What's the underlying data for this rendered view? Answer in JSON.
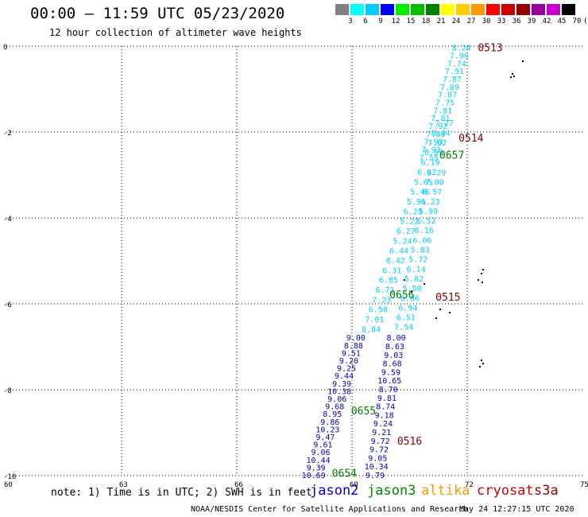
{
  "title": "00:00 – 11:59 UTC 05/23/2020",
  "subtitle": "12 hour collection of altimeter wave heights",
  "colorbar": {
    "labels": [
      "3",
      "6",
      "9",
      "12",
      "15",
      "18",
      "21",
      "24",
      "27",
      "30",
      "33",
      "36",
      "39",
      "42",
      "45",
      "70",
      "(ft)"
    ],
    "colors": [
      "#808080",
      "#00ffff",
      "#00ccff",
      "#0000ff",
      "#00ee00",
      "#00c000",
      "#008000",
      "#ffff00",
      "#ffcc00",
      "#ff9900",
      "#ff0000",
      "#cc0000",
      "#990000",
      "#990099",
      "#cc00cc",
      "#000000"
    ]
  },
  "axes": {
    "x_ticks": [
      "60",
      "63",
      "66",
      "69",
      "72",
      "75"
    ],
    "y_ticks": [
      "0",
      "-2",
      "-4",
      "-6",
      "-8",
      "-10"
    ],
    "lon_range": [
      60,
      75
    ],
    "lat_range": [
      -10,
      0
    ]
  },
  "tracks": [
    {
      "satellite": "jason2",
      "color": "#00ccff",
      "start": [
        71.85,
        -0.05
      ],
      "end": [
        71.0,
        -2.6
      ],
      "values": [
        "8.24",
        "7.96",
        "7.74",
        "7.91",
        "7.87",
        "7.89",
        "7.87",
        "7.75",
        "7.81",
        "7.81",
        "7.92",
        "7.80",
        "7.93",
        "7.93",
        "7.55"
      ]
    },
    {
      "satellite": "jason2",
      "color": "#00ccff",
      "start": [
        71.2,
        -2.95
      ],
      "end": [
        70.35,
        -6.55
      ],
      "values": [
        "8.29",
        "7.00",
        "6.57",
        "6.23",
        "5.99",
        "6.52",
        "6.16",
        "6.06",
        "5.83",
        "5.72",
        "6.14",
        "5.82",
        "5.50",
        "6.06",
        "6.94",
        "6.51",
        "7.54"
      ]
    },
    {
      "satellite": "jason2",
      "color": "#0000c8",
      "start": [
        70.15,
        -6.8
      ],
      "end": [
        69.6,
        -10.0
      ],
      "values": [
        "8.00",
        "8.63",
        "9.03",
        "8.68",
        "9.59",
        "10.65",
        "8.70",
        "9.81",
        "8.74",
        "9.18",
        "9.24",
        "9.21",
        "9.72",
        "9.72",
        "9.05",
        "10.34",
        "9.79"
      ]
    },
    {
      "satellite": "jason2",
      "color": "#00ccff",
      "start": [
        71.4,
        -1.8
      ],
      "end": [
        69.5,
        -6.6
      ],
      "values": [
        "7.27",
        "8.44",
        "7.02",
        "6.99",
        "6.19",
        "6.92",
        "5.65",
        "5.48",
        "5.91",
        "6.25",
        "5.22",
        "6.27",
        "5.24",
        "6.44",
        "6.42",
        "6.31",
        "6.85",
        "6.71",
        "7.23",
        "6.58",
        "7.01",
        "8.84"
      ]
    },
    {
      "satellite": "jason2",
      "color": "#0000c8",
      "start": [
        69.1,
        -6.8
      ],
      "end": [
        68.0,
        -10.0
      ],
      "values": [
        "9.00",
        "8.88",
        "9.51",
        "9.20",
        "9.25",
        "9.44",
        "9.39",
        "10.38",
        "9.06",
        "9.68",
        "8.95",
        "9.86",
        "10.23",
        "9.47",
        "9.61",
        "9.06",
        "10.44",
        "9.39",
        "10.69"
      ]
    }
  ],
  "time_labels": [
    {
      "text": "0513",
      "lon": 72.6,
      "lat": -0.05,
      "color": "#800000"
    },
    {
      "text": "0514",
      "lon": 72.1,
      "lat": -2.15,
      "color": "#800000"
    },
    {
      "text": "0657",
      "lon": 71.6,
      "lat": -2.55,
      "color": "#008000"
    },
    {
      "text": "0656",
      "lon": 70.3,
      "lat": -5.8,
      "color": "#008000"
    },
    {
      "text": "0515",
      "lon": 71.5,
      "lat": -5.85,
      "color": "#800000"
    },
    {
      "text": "0655",
      "lon": 69.3,
      "lat": -8.5,
      "color": "#008000"
    },
    {
      "text": "0516",
      "lon": 70.5,
      "lat": -9.2,
      "color": "#800000"
    },
    {
      "text": "0654",
      "lon": 68.8,
      "lat": -9.95,
      "color": "#008000"
    }
  ],
  "note": "note: 1) Time is in UTC; 2) SWH is in feet",
  "satellites": [
    {
      "name": "jason2",
      "color": "#0000cc"
    },
    {
      "name": "jason3",
      "color": "#008800"
    },
    {
      "name": "altika",
      "color": "#ff9900"
    },
    {
      "name": "cryosat",
      "color": "#cc0000"
    },
    {
      "name": "s3a",
      "color": "#990000"
    }
  ],
  "credit": "NOAA/NESDIS Center for Satellite Applications and Research",
  "timestamp": "May 24 12:27:15 UTC 2020"
}
